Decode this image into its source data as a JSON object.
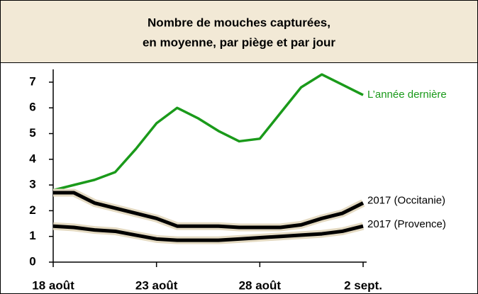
{
  "chart_data": {
    "type": "line",
    "title": [
      "Nombre de mouches capturées,",
      "en moyenne, par piège et par jour"
    ],
    "categories": [
      "18 août",
      null,
      null,
      null,
      null,
      "23 août",
      null,
      null,
      null,
      null,
      "28 août",
      null,
      null,
      null,
      null,
      "2 sept."
    ],
    "series": [
      {
        "name": "L’année dernière",
        "color": "#1a9a1a",
        "values": [
          2.8,
          3.0,
          3.2,
          3.5,
          4.4,
          5.4,
          6.0,
          5.6,
          5.1,
          4.7,
          4.8,
          5.8,
          6.8,
          7.3,
          6.9,
          6.5
        ]
      },
      {
        "name": "2017 (Occitanie)",
        "color": "#000000",
        "values": [
          2.7,
          2.7,
          2.3,
          2.1,
          1.9,
          1.7,
          1.4,
          1.4,
          1.4,
          1.35,
          1.35,
          1.35,
          1.45,
          1.7,
          1.9,
          2.3
        ]
      },
      {
        "name": "2017 (Provence)",
        "color": "#000000",
        "values": [
          1.4,
          1.35,
          1.25,
          1.2,
          1.05,
          0.9,
          0.85,
          0.85,
          0.85,
          0.9,
          0.95,
          1.0,
          1.05,
          1.1,
          1.2,
          1.4
        ]
      }
    ],
    "ylim": [
      0,
      7.5
    ],
    "yticks": [
      0,
      1,
      2,
      3,
      4,
      5,
      6,
      7
    ]
  }
}
